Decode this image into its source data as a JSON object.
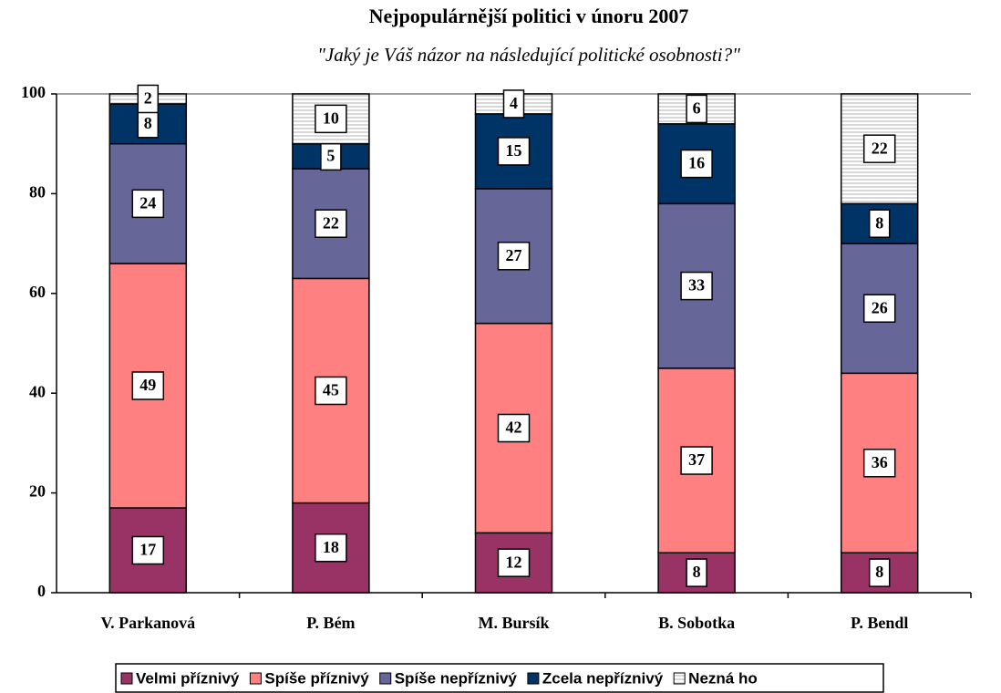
{
  "chart_data": {
    "type": "stacked_bar",
    "title": "Nejpopulárnější politici v únoru 2007",
    "subtitle": "\"Jaký je Váš názor na následující politické osobnosti?\"",
    "categories": [
      "V. Parkanová",
      "P. Bém",
      "M. Bursík",
      "B. Sobotka",
      "P. Bendl"
    ],
    "series": [
      {
        "name": "Velmi příznivý",
        "color": "#993366",
        "values": [
          17,
          18,
          12,
          8,
          8
        ]
      },
      {
        "name": "Spíše příznivý",
        "color": "#ff8080",
        "values": [
          49,
          45,
          42,
          37,
          36
        ]
      },
      {
        "name": "Spíše nepříznivý",
        "color": "#666699",
        "values": [
          24,
          22,
          27,
          33,
          26
        ]
      },
      {
        "name": "Zcela nepříznivý",
        "color": "#003366",
        "values": [
          8,
          5,
          15,
          16,
          8
        ]
      },
      {
        "name": "Nezná ho",
        "color": "#b0b0b0",
        "pattern": "horizontal-stripes",
        "values": [
          2,
          10,
          4,
          6,
          22
        ]
      }
    ],
    "ylim": [
      0,
      100
    ],
    "yticks": [
      0,
      20,
      40,
      60,
      80,
      100
    ],
    "legend": "bottom"
  }
}
